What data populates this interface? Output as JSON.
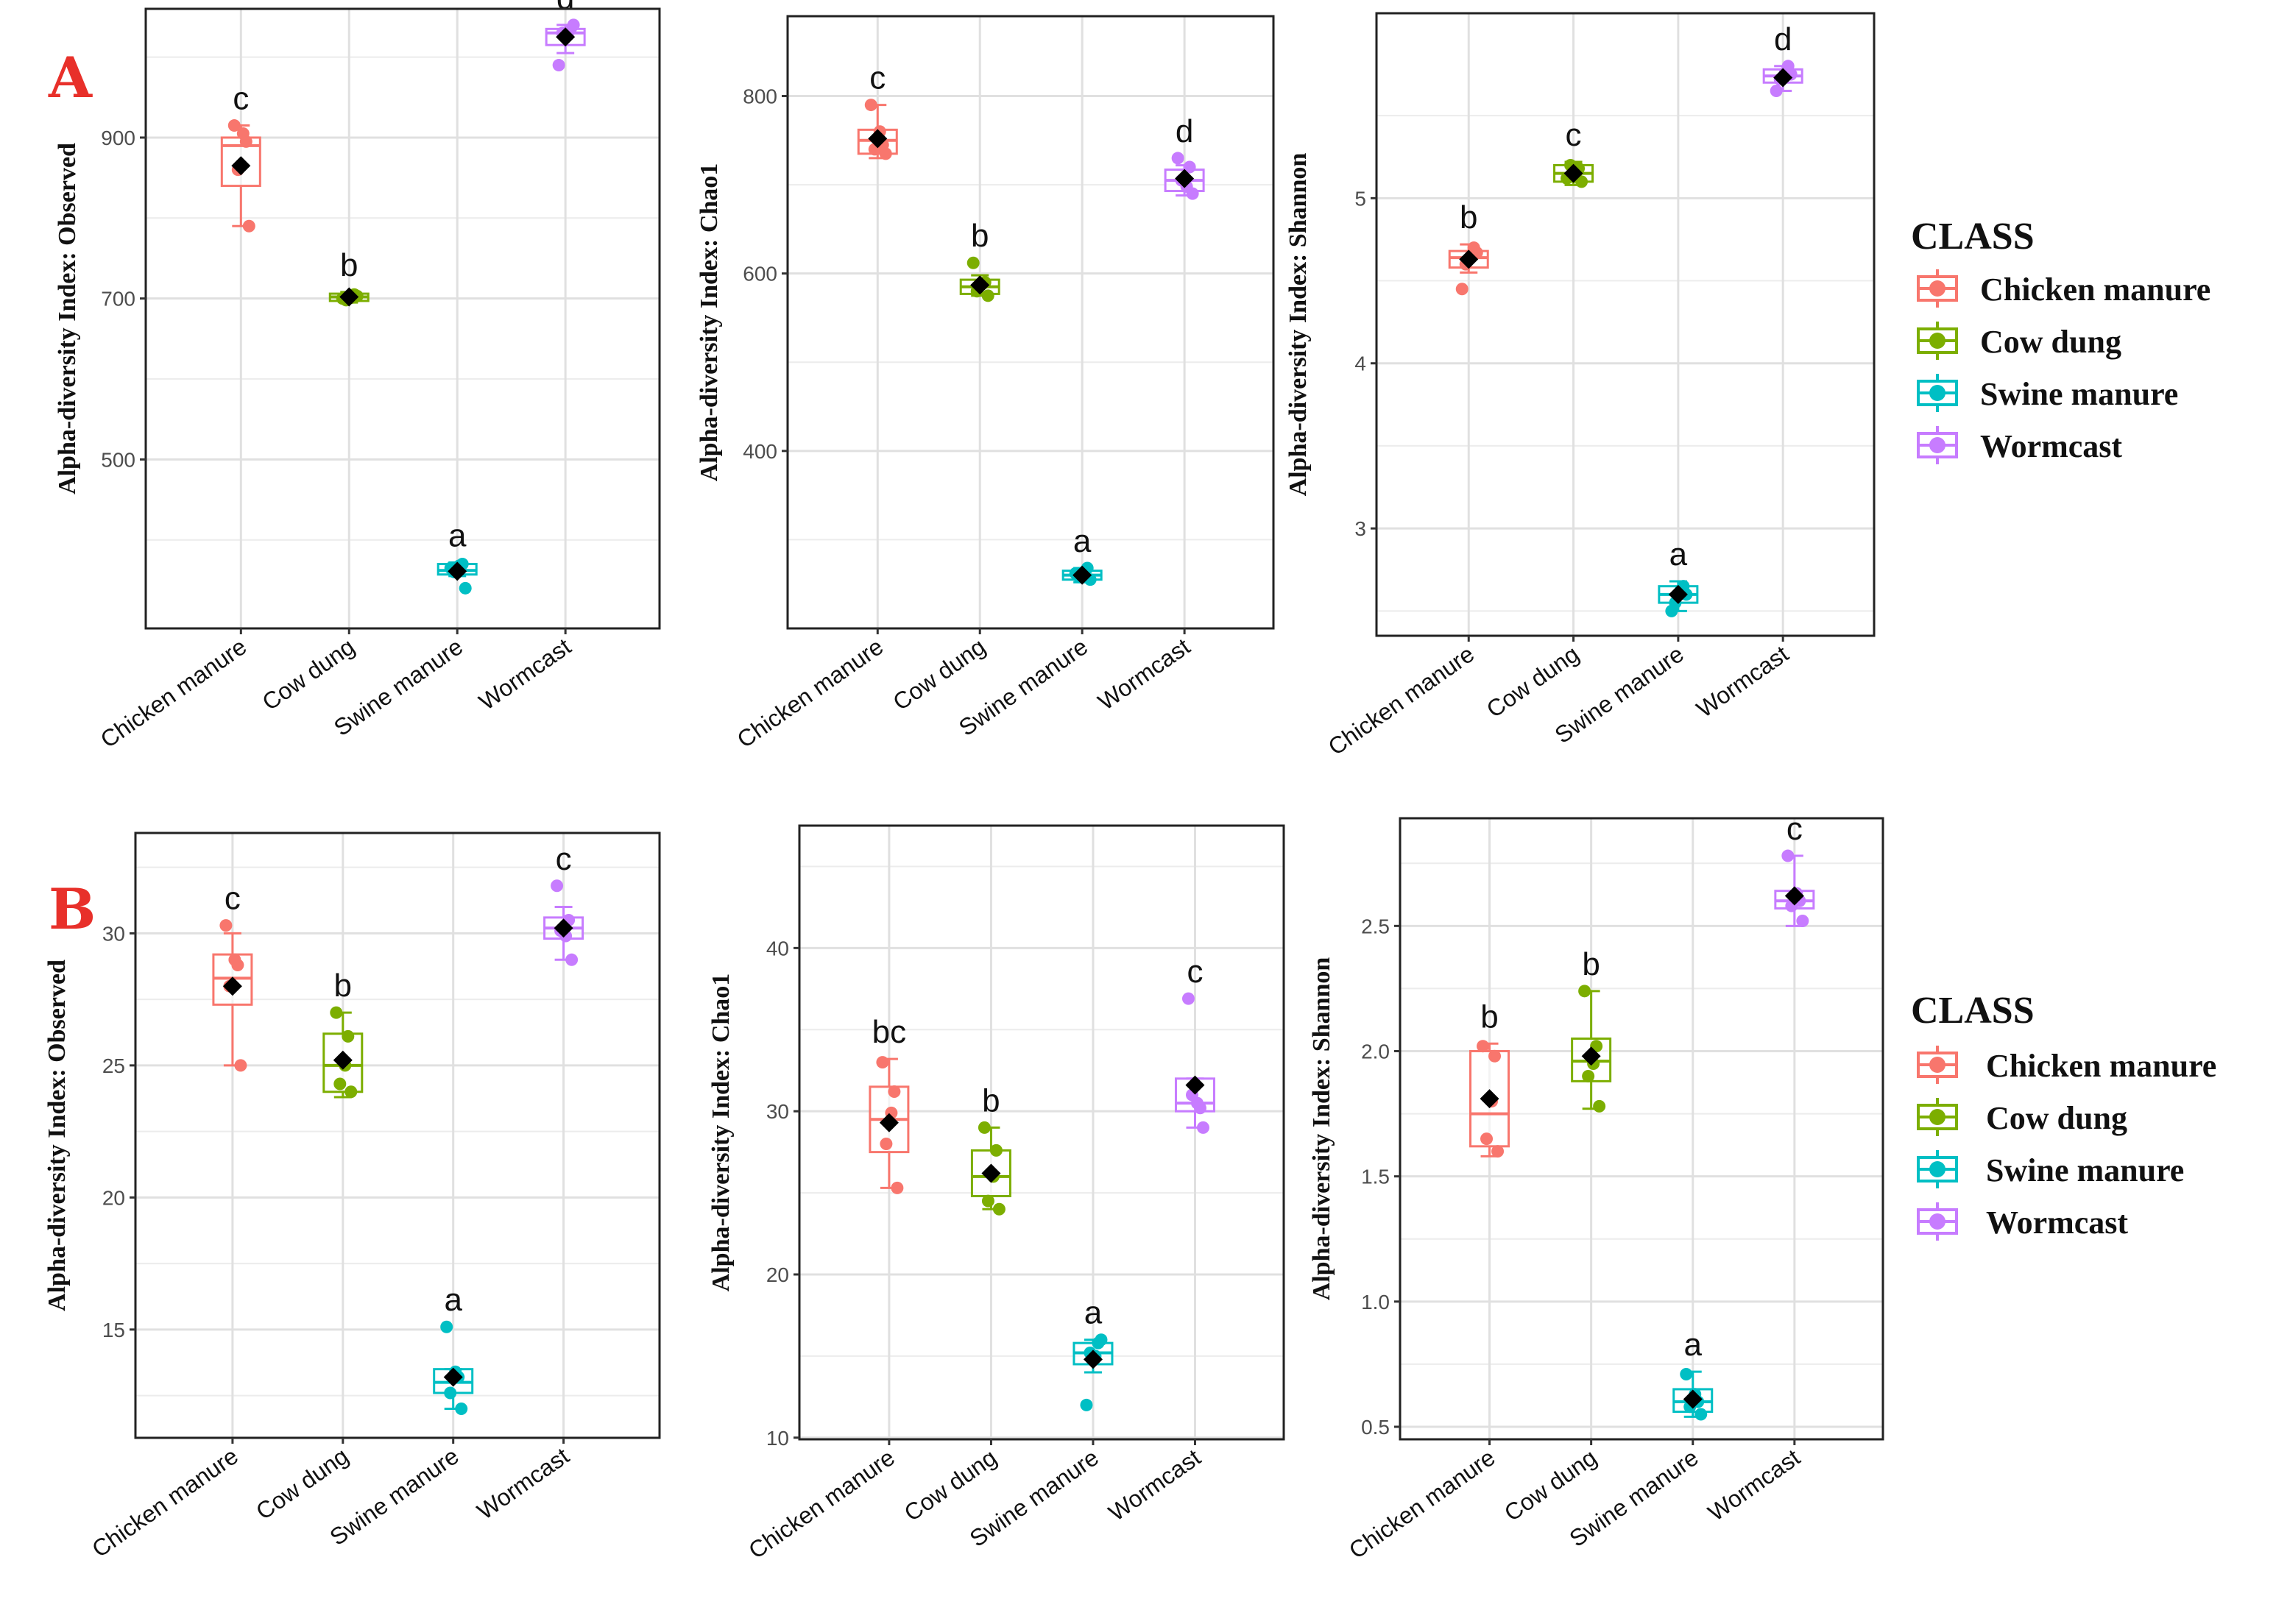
{
  "rows": [
    {
      "label": "A"
    },
    {
      "label": "B"
    }
  ],
  "legend": {
    "title": "CLASS",
    "items": [
      {
        "name": "Chicken manure",
        "color": "#F8766D"
      },
      {
        "name": "Cow dung",
        "color": "#7CAE00"
      },
      {
        "name": "Swine manure",
        "color": "#00BFC4"
      },
      {
        "name": "Wormcast",
        "color": "#C77CFF"
      }
    ]
  },
  "chart_data": [
    {
      "type": "box",
      "row": 0,
      "col": 0,
      "ylabel": "Alpha-diversity Index: Observed",
      "categories": [
        "Chicken manure",
        "Cow dung",
        "Swine manure",
        "Wormcast"
      ],
      "ylim": [
        290,
        1060
      ],
      "yticks": [
        500,
        700,
        900
      ],
      "yminor": [
        400,
        600,
        800,
        1000
      ],
      "boxes": [
        {
          "q1": 840,
          "median": 890,
          "q3": 900,
          "whislo": 790,
          "whishi": 915,
          "mean": 865,
          "points": [
            915,
            895,
            790,
            860,
            905
          ],
          "letter": "c"
        },
        {
          "q1": 697,
          "median": 702,
          "q3": 706,
          "whislo": 695,
          "whishi": 708,
          "mean": 702,
          "points": [
            700,
            705,
            703,
            698,
            701
          ],
          "letter": "b"
        },
        {
          "q1": 357,
          "median": 362,
          "q3": 370,
          "whislo": 355,
          "whishi": 372,
          "mean": 361,
          "points": [
            365,
            370,
            340,
            360,
            368
          ],
          "letter": "a"
        },
        {
          "q1": 1015,
          "median": 1030,
          "q3": 1035,
          "whislo": 1005,
          "whishi": 1040,
          "mean": 1025,
          "points": [
            990,
            1035,
            1040,
            1030,
            1028
          ],
          "letter": "d"
        }
      ]
    },
    {
      "type": "box",
      "row": 0,
      "col": 1,
      "ylabel": "Alpha-diversity Index: Chao1",
      "categories": [
        "Chicken manure",
        "Cow dung",
        "Swine manure",
        "Wormcast"
      ],
      "ylim": [
        200,
        890
      ],
      "yticks": [
        400,
        600,
        800
      ],
      "yminor": [
        300,
        500,
        700
      ],
      "boxes": [
        {
          "q1": 735,
          "median": 750,
          "q3": 762,
          "whislo": 730,
          "whishi": 790,
          "mean": 752,
          "points": [
            790,
            745,
            735,
            740,
            760
          ],
          "letter": "c"
        },
        {
          "q1": 577,
          "median": 585,
          "q3": 593,
          "whislo": 575,
          "whishi": 598,
          "mean": 587,
          "points": [
            612,
            590,
            575,
            580,
            588
          ],
          "letter": "b"
        },
        {
          "q1": 255,
          "median": 260,
          "q3": 265,
          "whislo": 252,
          "whishi": 268,
          "mean": 260,
          "points": [
            262,
            268,
            255,
            258,
            264
          ],
          "letter": "a"
        },
        {
          "q1": 693,
          "median": 705,
          "q3": 717,
          "whislo": 688,
          "whishi": 722,
          "mean": 707,
          "points": [
            730,
            720,
            690,
            705,
            698
          ],
          "letter": "d"
        }
      ]
    },
    {
      "type": "box",
      "row": 0,
      "col": 2,
      "ylabel": "Alpha-diversity Index: Shannon",
      "categories": [
        "Chicken manure",
        "Cow dung",
        "Swine manure",
        "Wormcast"
      ],
      "ylim": [
        2.35,
        6.12
      ],
      "yticks": [
        3,
        4,
        5
      ],
      "yminor": [
        2.5,
        3.5,
        4.5,
        5.5
      ],
      "boxes": [
        {
          "q1": 4.58,
          "median": 4.64,
          "q3": 4.68,
          "whislo": 4.55,
          "whishi": 4.72,
          "mean": 4.63,
          "points": [
            4.45,
            4.7,
            4.67,
            4.6,
            4.65
          ],
          "letter": "b"
        },
        {
          "q1": 5.1,
          "median": 5.15,
          "q3": 5.2,
          "whislo": 5.08,
          "whishi": 5.22,
          "mean": 5.15,
          "points": [
            5.12,
            5.18,
            5.1,
            5.2,
            5.14
          ],
          "letter": "c"
        },
        {
          "q1": 2.55,
          "median": 2.6,
          "q3": 2.65,
          "whislo": 2.5,
          "whishi": 2.68,
          "mean": 2.6,
          "points": [
            2.5,
            2.65,
            2.6,
            2.55,
            2.62
          ],
          "letter": "a"
        },
        {
          "q1": 5.7,
          "median": 5.74,
          "q3": 5.78,
          "whislo": 5.65,
          "whishi": 5.8,
          "mean": 5.73,
          "points": [
            5.65,
            5.8,
            5.75,
            5.72,
            5.76
          ],
          "letter": "d"
        }
      ]
    },
    {
      "type": "box",
      "row": 1,
      "col": 0,
      "ylabel": "Alpha-diversity Index: Observed",
      "categories": [
        "Chicken manure",
        "Cow dung",
        "Swine manure",
        "Wormcast"
      ],
      "ylim": [
        10.9,
        33.8
      ],
      "yticks": [
        15,
        20,
        25,
        30
      ],
      "yminor": [
        12.5,
        17.5,
        22.5,
        27.5,
        32.5
      ],
      "boxes": [
        {
          "q1": 27.3,
          "median": 28.3,
          "q3": 29.2,
          "whislo": 25,
          "whishi": 30,
          "mean": 28,
          "points": [
            30.3,
            28.8,
            25,
            28,
            29
          ],
          "letter": "c"
        },
        {
          "q1": 24,
          "median": 25,
          "q3": 26.2,
          "whislo": 23.8,
          "whishi": 27,
          "mean": 25.2,
          "points": [
            27,
            26.1,
            24,
            24.3,
            25
          ],
          "letter": "b"
        },
        {
          "q1": 12.6,
          "median": 13,
          "q3": 13.5,
          "whislo": 12,
          "whishi": 13.5,
          "mean": 13.2,
          "points": [
            15.1,
            13.2,
            12,
            12.6,
            13.4
          ],
          "letter": "a"
        },
        {
          "q1": 29.8,
          "median": 30.2,
          "q3": 30.6,
          "whislo": 29,
          "whishi": 31,
          "mean": 30.2,
          "points": [
            31.8,
            30.5,
            29,
            30.1,
            29.9
          ],
          "letter": "c"
        }
      ]
    },
    {
      "type": "box",
      "row": 1,
      "col": 1,
      "ylabel": "Alpha-diversity Index: Chao1",
      "categories": [
        "Chicken manure",
        "Cow dung",
        "Swine manure",
        "Wormcast"
      ],
      "ylim": [
        9.9,
        47.5
      ],
      "yticks": [
        10,
        20,
        30,
        40
      ],
      "yminor": [
        15,
        25,
        35,
        45
      ],
      "boxes": [
        {
          "q1": 27.5,
          "median": 29.5,
          "q3": 31.5,
          "whislo": 25.3,
          "whishi": 33.2,
          "mean": 29.3,
          "points": [
            33,
            31.2,
            25.3,
            28,
            29.9
          ],
          "letter": "bc"
        },
        {
          "q1": 24.8,
          "median": 26,
          "q3": 27.6,
          "whislo": 24,
          "whishi": 29,
          "mean": 26.2,
          "points": [
            29,
            27.6,
            24,
            24.5,
            26
          ],
          "letter": "b"
        },
        {
          "q1": 14.5,
          "median": 15.2,
          "q3": 15.8,
          "whislo": 14,
          "whishi": 16,
          "mean": 14.8,
          "points": [
            12,
            15.8,
            16,
            15.2,
            15
          ],
          "letter": "a"
        },
        {
          "q1": 30,
          "median": 30.5,
          "q3": 32,
          "whislo": 29,
          "whishi": 32,
          "mean": 31.6,
          "points": [
            36.9,
            30.2,
            29,
            31,
            30.5
          ],
          "letter": "c"
        }
      ]
    },
    {
      "type": "box",
      "row": 1,
      "col": 2,
      "ylabel": "Alpha-diversity Index: Shannon",
      "categories": [
        "Chicken manure",
        "Cow dung",
        "Swine manure",
        "Wormcast"
      ],
      "ylim": [
        0.45,
        2.93
      ],
      "yticks": [
        0.5,
        1.0,
        1.5,
        2.0,
        2.5
      ],
      "ytickLabels": [
        "0.5",
        "1.0",
        "1.5",
        "2.0",
        "2.5"
      ],
      "yminor": [
        0.75,
        1.25,
        1.75,
        2.25,
        2.75
      ],
      "boxes": [
        {
          "q1": 1.62,
          "median": 1.75,
          "q3": 2.0,
          "whislo": 1.58,
          "whishi": 2.03,
          "mean": 1.81,
          "points": [
            2.02,
            1.98,
            1.6,
            1.65,
            1.8
          ],
          "letter": "b"
        },
        {
          "q1": 1.88,
          "median": 1.96,
          "q3": 2.05,
          "whislo": 1.77,
          "whishi": 2.24,
          "mean": 1.98,
          "points": [
            2.24,
            2.02,
            1.78,
            1.9,
            1.95
          ],
          "letter": "b"
        },
        {
          "q1": 0.56,
          "median": 0.6,
          "q3": 0.65,
          "whislo": 0.54,
          "whishi": 0.72,
          "mean": 0.61,
          "points": [
            0.71,
            0.6,
            0.55,
            0.58,
            0.63
          ],
          "letter": "a"
        },
        {
          "q1": 2.57,
          "median": 2.6,
          "q3": 2.64,
          "whislo": 2.5,
          "whishi": 2.78,
          "mean": 2.62,
          "points": [
            2.78,
            2.6,
            2.52,
            2.58,
            2.63
          ],
          "letter": "c"
        }
      ]
    }
  ]
}
